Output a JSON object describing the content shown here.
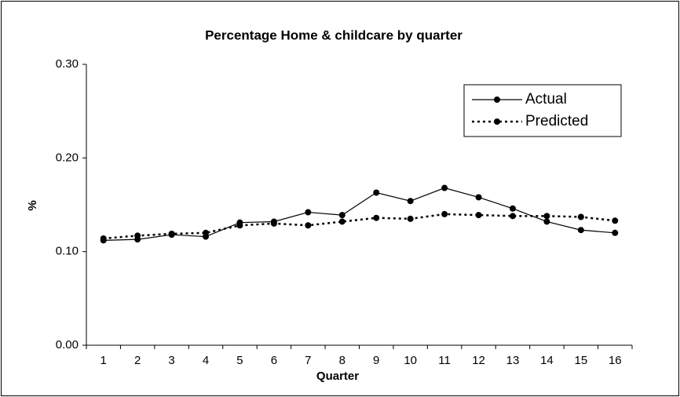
{
  "chart_data": {
    "type": "line",
    "title": "Percentage Home & childcare by quarter",
    "x_label": "Quarter",
    "y_label": "%",
    "categories": [
      "1",
      "2",
      "3",
      "4",
      "5",
      "6",
      "7",
      "8",
      "9",
      "10",
      "11",
      "12",
      "13",
      "14",
      "15",
      "16"
    ],
    "series": [
      {
        "name": "Actual",
        "color": "#000000",
        "style": "solid",
        "values": [
          0.112,
          0.113,
          0.118,
          0.116,
          0.131,
          0.132,
          0.142,
          0.139,
          0.163,
          0.154,
          0.168,
          0.158,
          0.146,
          0.132,
          0.123,
          0.12
        ]
      },
      {
        "name": "Predicted",
        "color": "#000000",
        "style": "dotted",
        "values": [
          0.114,
          0.117,
          0.119,
          0.12,
          0.128,
          0.13,
          0.128,
          0.132,
          0.136,
          0.135,
          0.14,
          0.139,
          0.138,
          0.138,
          0.137,
          0.133
        ]
      }
    ],
    "ylim": [
      0,
      0.3
    ],
    "yticks": [
      {
        "value": 0,
        "label": "0.00"
      },
      {
        "value": 0.1,
        "label": "0.10"
      },
      {
        "value": 0.2,
        "label": "0.20"
      },
      {
        "value": 0.3,
        "label": "0.30"
      }
    ],
    "grid": false,
    "legend": "top-right"
  }
}
